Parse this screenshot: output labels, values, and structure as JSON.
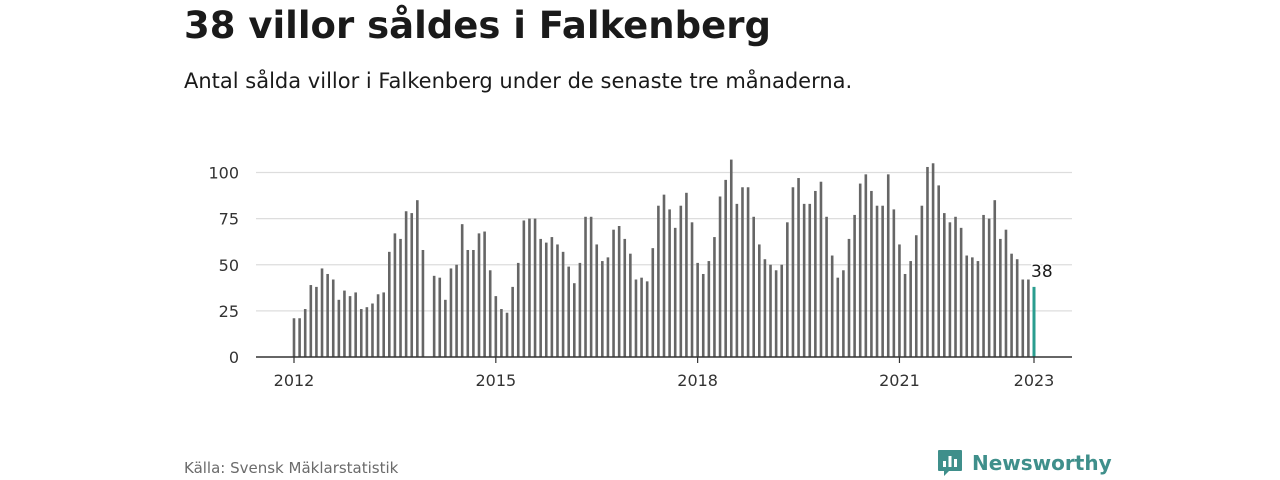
{
  "title": "38 villor såldes i Falkenberg",
  "subtitle": "Antal sålda villor i Falkenberg under de senaste tre månaderna.",
  "source": "Källa: Svensk Mäklarstatistik",
  "brand": {
    "name": "Newsworthy",
    "icon": "newsworthy-logo-icon"
  },
  "colors": {
    "bar": "#666666",
    "highlight": "#2a9d8f",
    "grid": "#dddddd",
    "axis": "#333333",
    "brand": "#3f8f8b"
  },
  "chart_data": {
    "type": "bar",
    "title": "",
    "xlabel": "",
    "ylabel": "",
    "ylim": [
      0,
      110
    ],
    "yticks": [
      0,
      25,
      50,
      75,
      100
    ],
    "xticks": [
      "2012",
      "2015",
      "2018",
      "2021",
      "2023"
    ],
    "grid": true,
    "x_start": "2012-01",
    "x_end": "2023-01",
    "categories": [
      "2012-01",
      "2012-02",
      "2012-03",
      "2012-04",
      "2012-05",
      "2012-06",
      "2012-07",
      "2012-08",
      "2012-09",
      "2012-10",
      "2012-11",
      "2012-12",
      "2013-01",
      "2013-02",
      "2013-03",
      "2013-04",
      "2013-05",
      "2013-06",
      "2013-07",
      "2013-08",
      "2013-09",
      "2013-10",
      "2013-11",
      "2013-12",
      "2014-01",
      "2014-02",
      "2014-03",
      "2014-04",
      "2014-05",
      "2014-06",
      "2014-07",
      "2014-08",
      "2014-09",
      "2014-10",
      "2014-11",
      "2014-12",
      "2015-01",
      "2015-02",
      "2015-03",
      "2015-04",
      "2015-05",
      "2015-06",
      "2015-07",
      "2015-08",
      "2015-09",
      "2015-10",
      "2015-11",
      "2015-12",
      "2016-01",
      "2016-02",
      "2016-03",
      "2016-04",
      "2016-05",
      "2016-06",
      "2016-07",
      "2016-08",
      "2016-09",
      "2016-10",
      "2016-11",
      "2016-12",
      "2017-01",
      "2017-02",
      "2017-03",
      "2017-04",
      "2017-05",
      "2017-06",
      "2017-07",
      "2017-08",
      "2017-09",
      "2017-10",
      "2017-11",
      "2017-12",
      "2018-01",
      "2018-02",
      "2018-03",
      "2018-04",
      "2018-05",
      "2018-06",
      "2018-07",
      "2018-08",
      "2018-09",
      "2018-10",
      "2018-11",
      "2018-12",
      "2019-01",
      "2019-02",
      "2019-03",
      "2019-04",
      "2019-05",
      "2019-06",
      "2019-07",
      "2019-08",
      "2019-09",
      "2019-10",
      "2019-11",
      "2019-12",
      "2020-01",
      "2020-02",
      "2020-03",
      "2020-04",
      "2020-05",
      "2020-06",
      "2020-07",
      "2020-08",
      "2020-09",
      "2020-10",
      "2020-11",
      "2020-12",
      "2021-01",
      "2021-02",
      "2021-03",
      "2021-04",
      "2021-05",
      "2021-06",
      "2021-07",
      "2021-08",
      "2021-09",
      "2021-10",
      "2021-11",
      "2021-12",
      "2022-01",
      "2022-02",
      "2022-03",
      "2022-04",
      "2022-05",
      "2022-06",
      "2022-07",
      "2022-08",
      "2022-09",
      "2022-10",
      "2022-11",
      "2022-12",
      "2023-01"
    ],
    "values": [
      21,
      21,
      26,
      39,
      38,
      48,
      45,
      42,
      31,
      36,
      33,
      35,
      26,
      27,
      29,
      34,
      35,
      57,
      67,
      64,
      79,
      78,
      85,
      58,
      null,
      44,
      43,
      31,
      48,
      50,
      72,
      58,
      58,
      67,
      68,
      47,
      33,
      26,
      24,
      38,
      51,
      74,
      75,
      75,
      64,
      62,
      65,
      61,
      57,
      49,
      40,
      51,
      76,
      76,
      61,
      52,
      54,
      69,
      71,
      64,
      56,
      42,
      43,
      41,
      59,
      82,
      88,
      80,
      70,
      82,
      89,
      73,
      51,
      45,
      52,
      65,
      87,
      96,
      107,
      83,
      92,
      92,
      76,
      61,
      53,
      50,
      47,
      50,
      73,
      92,
      97,
      83,
      83,
      90,
      95,
      76,
      55,
      43,
      47,
      64,
      77,
      94,
      99,
      90,
      82,
      82,
      99,
      80,
      61,
      45,
      52,
      66,
      82,
      103,
      105,
      93,
      78,
      73,
      76,
      70,
      55,
      54,
      52,
      77,
      75,
      85,
      64,
      69,
      56,
      53,
      42,
      42,
      38
    ],
    "annotations": [
      {
        "text": "38",
        "category": "2023-01"
      }
    ]
  }
}
